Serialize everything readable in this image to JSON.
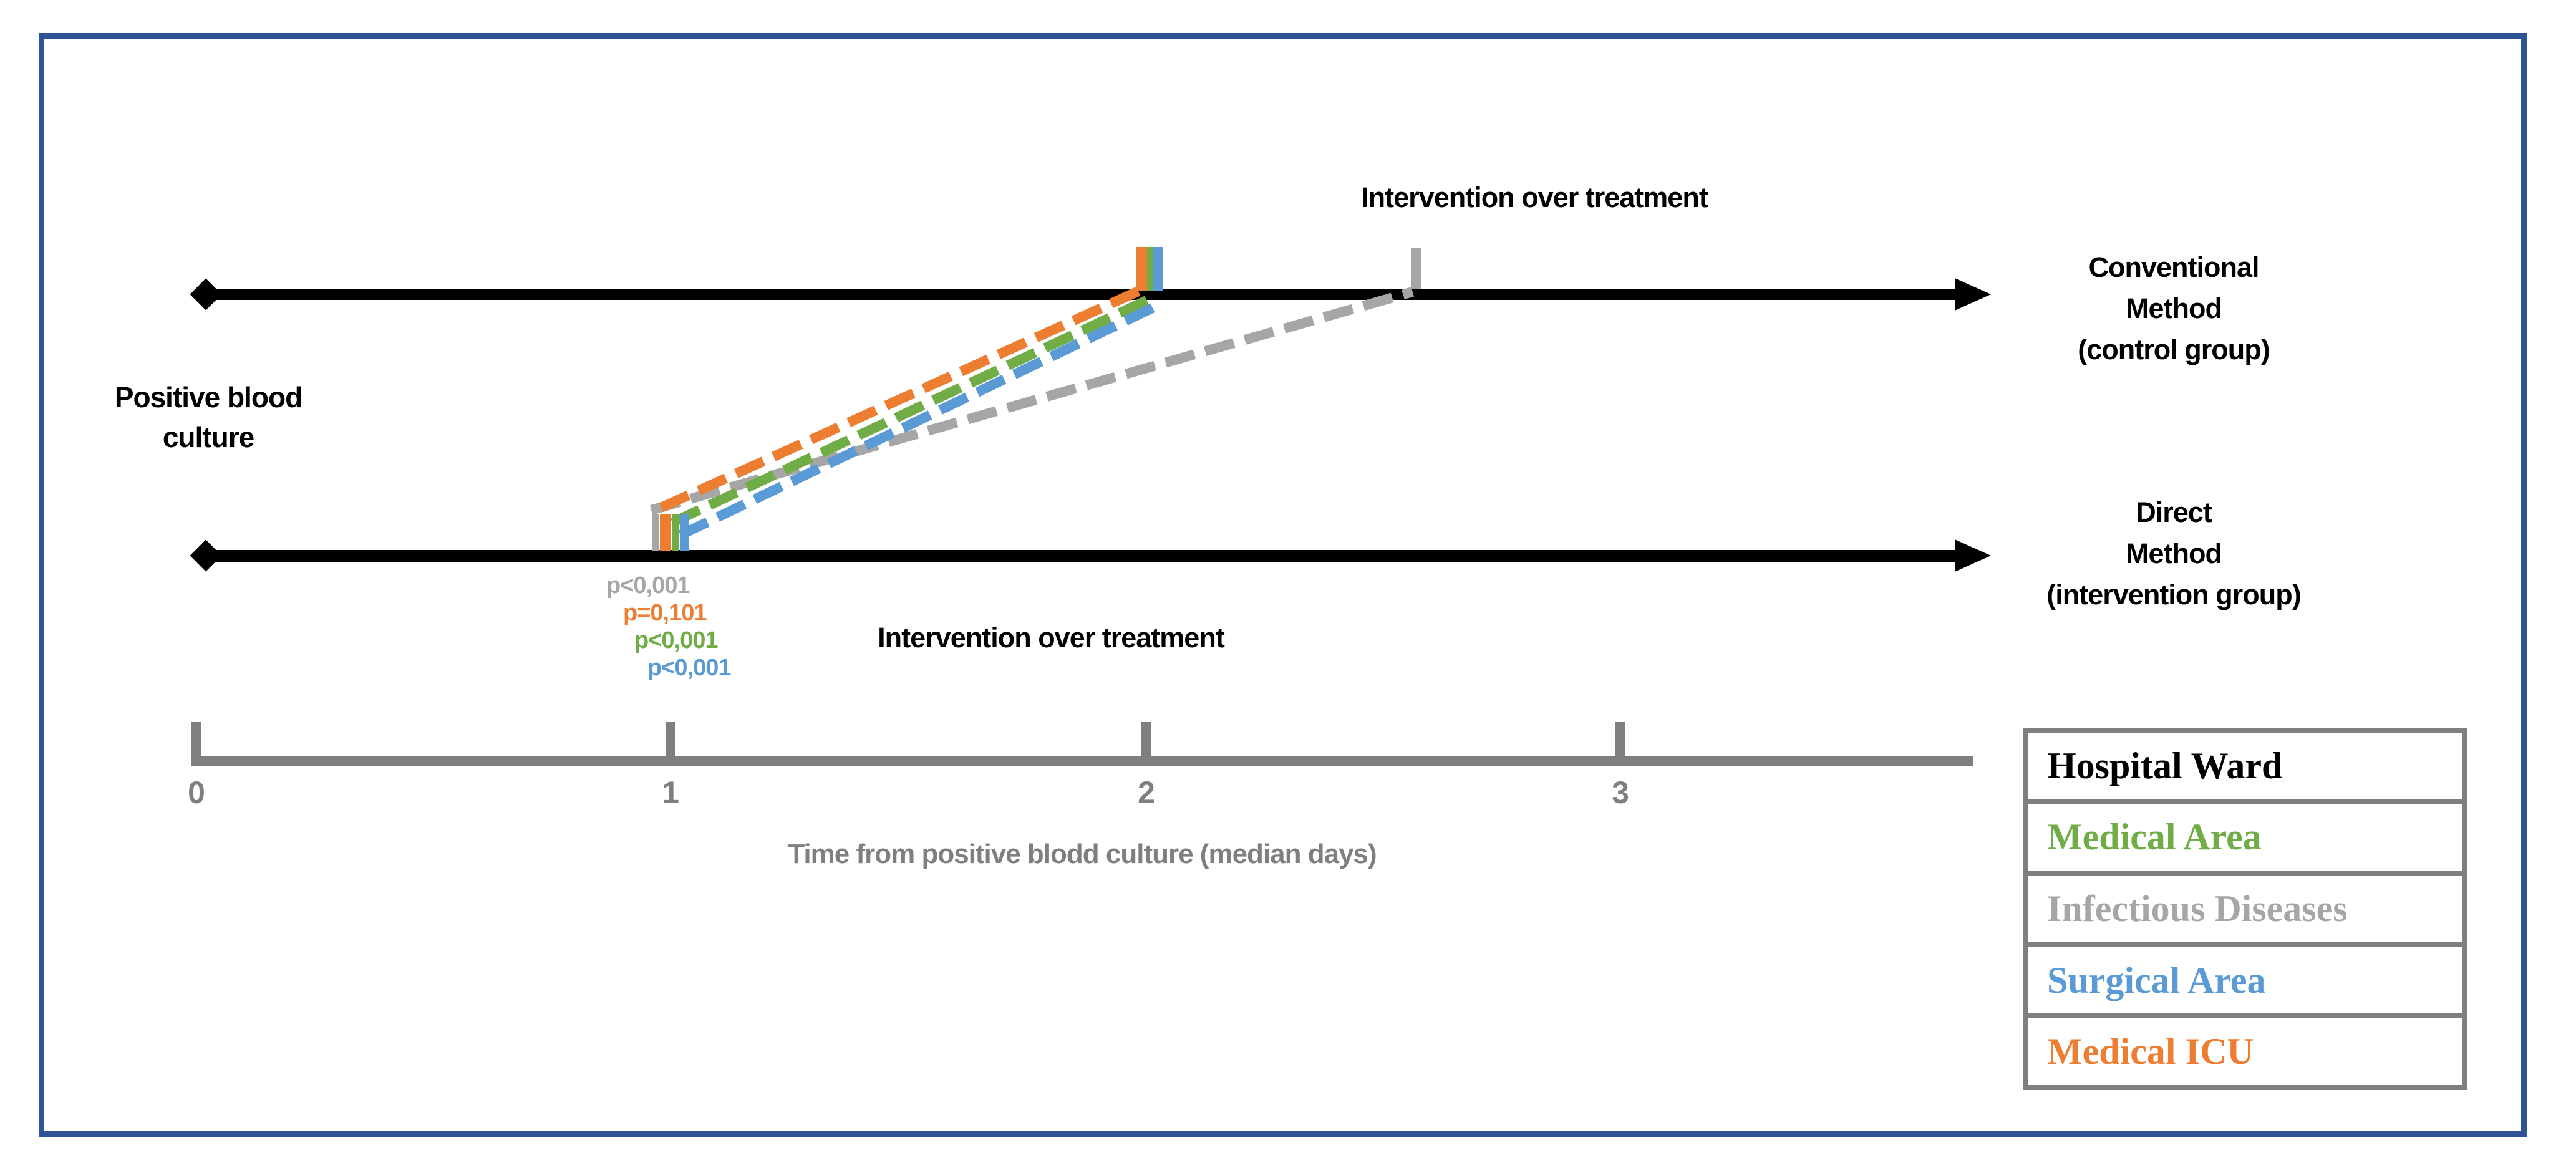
{
  "figure": {
    "description": "Timeline comparison of conventional vs direct method for intervention after positive blood culture",
    "frame_color": "#2F5496",
    "background": "#FFFFFF"
  },
  "timelines": {
    "conventional": {
      "label_lines": [
        "Conventional",
        "Method",
        "(control group)"
      ],
      "annotation": "Intervention over treatment"
    },
    "direct": {
      "label_lines": [
        "Direct",
        "Method",
        "(intervention group)"
      ],
      "annotation": "Intervention over treatment"
    },
    "origin_label_lines": [
      "Positive blood",
      "culture"
    ]
  },
  "pvalues": [
    {
      "ward": "Infectious Diseases",
      "text": "p<0,001",
      "color": "#A6A6A6"
    },
    {
      "ward": "Medical ICU",
      "text": "p=0,101",
      "color": "#ED7D31"
    },
    {
      "ward": "Medical Area",
      "text": "p<0,001",
      "color": "#70AD47"
    },
    {
      "ward": "Surgical Area",
      "text": "p<0,001",
      "color": "#5B9BD5"
    }
  ],
  "axis": {
    "tick_labels": [
      "0",
      "1",
      "2",
      "3"
    ],
    "label": "Time from positive blodd culture (median days)",
    "color": "#7F7F7F"
  },
  "legend": {
    "title": "Hospital Ward",
    "items": [
      {
        "label": "Medical Area",
        "color": "#70AD47"
      },
      {
        "label": "Infectious Diseases",
        "color": "#A6A6A6"
      },
      {
        "label": "Surgical Area",
        "color": "#5B9BD5"
      },
      {
        "label": "Medical ICU",
        "color": "#ED7D31"
      }
    ]
  },
  "chart_data": {
    "type": "timeline",
    "x_axis": {
      "label": "Time from positive blodd culture (median days)",
      "ticks": [
        0,
        1,
        2,
        3
      ],
      "range": [
        0,
        3.75
      ]
    },
    "series": [
      {
        "ward": "Medical Area",
        "color": "#70AD47",
        "direct_median_days": 1.0,
        "conventional_median_days": 2.0,
        "p_value": "p<0,001"
      },
      {
        "ward": "Infectious Diseases",
        "color": "#A6A6A6",
        "direct_median_days": 1.0,
        "conventional_median_days": 2.6,
        "p_value": "p<0,001"
      },
      {
        "ward": "Surgical Area",
        "color": "#5B9BD5",
        "direct_median_days": 1.0,
        "conventional_median_days": 2.0,
        "p_value": "p<0,001"
      },
      {
        "ward": "Medical ICU",
        "color": "#ED7D31",
        "direct_median_days": 1.0,
        "conventional_median_days": 2.0,
        "p_value": "p=0,101"
      }
    ]
  }
}
